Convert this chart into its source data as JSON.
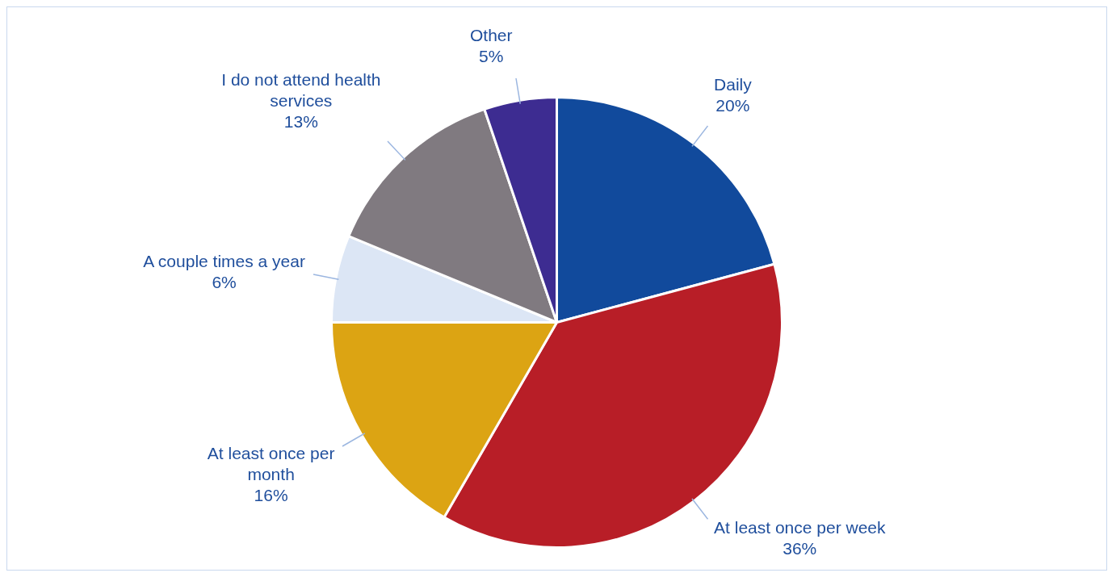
{
  "chart_data": {
    "type": "pie",
    "categories": [
      "Daily",
      "At least once per week",
      "At least once per month",
      "A couple times a year",
      "I do not attend health services",
      "Other"
    ],
    "values": [
      20,
      36,
      16,
      6,
      13,
      5
    ],
    "value_labels": [
      "20%",
      "36%",
      "16%",
      "6%",
      "13%",
      "5%"
    ],
    "colors": [
      "#114a9c",
      "#b81e27",
      "#dca413",
      "#dce6f5",
      "#807a80",
      "#3d2c91"
    ],
    "legend": false
  }
}
